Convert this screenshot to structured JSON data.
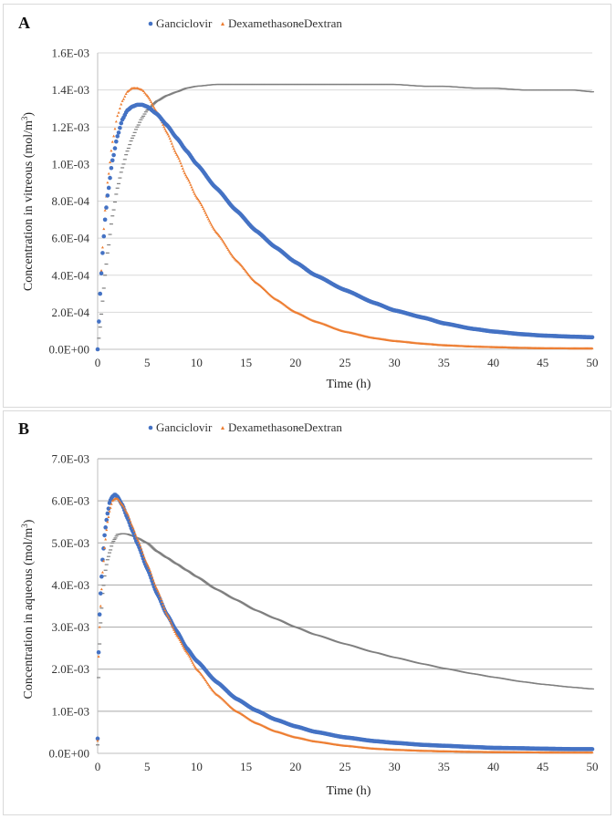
{
  "chart_data": [
    {
      "panel_label": "A",
      "type": "scatter",
      "title": "",
      "xlabel": "Time (h)",
      "ylabel": "Concentration in vitreous (mol/m3)",
      "ylabel_parts": {
        "main": "Concentration in vitreous (mol/m",
        "sup": "3",
        "end": ")"
      },
      "xlim": [
        0,
        50
      ],
      "ylim": [
        0,
        0.0016
      ],
      "x_ticks": [
        "0",
        "5",
        "10",
        "15",
        "20",
        "25",
        "30",
        "35",
        "40",
        "45",
        "50"
      ],
      "y_ticks": [
        "0.0E+00",
        "2.0E-04",
        "4.0E-04",
        "6.0E-04",
        "8.0E-04",
        "1.0E-03",
        "1.2E-03",
        "1.4E-03",
        "1.6E-03"
      ],
      "grid": true,
      "legend_position": "top-center",
      "series": [
        {
          "name": "Ganciclovir",
          "color": "#4472c4",
          "marker": "circle",
          "x": [
            0,
            0.25,
            0.5,
            0.75,
            1,
            1.5,
            2,
            2.5,
            3,
            3.5,
            4,
            4.5,
            5,
            6,
            7,
            8,
            9,
            10,
            12,
            14,
            16,
            18,
            20,
            22,
            25,
            28,
            30,
            33,
            35,
            38,
            40,
            43,
            45,
            48,
            50
          ],
          "y": [
            0,
            0.0003,
            0.00052,
            0.0007,
            0.00083,
            0.00102,
            0.00115,
            0.00124,
            0.00129,
            0.00131,
            0.00132,
            0.00132,
            0.00131,
            0.00127,
            0.00121,
            0.00114,
            0.00107,
            0.001,
            0.00087,
            0.00075,
            0.00064,
            0.00055,
            0.00047,
            0.0004,
            0.00032,
            0.00025,
            0.00021,
            0.00017,
            0.00014,
            0.00011,
            9.6e-05,
            8.1e-05,
            7.4e-05,
            6.8e-05,
            6.5e-05
          ]
        },
        {
          "name": "Dexamethasone",
          "color": "#ed7d31",
          "marker": "triangle",
          "x": [
            0,
            0.25,
            0.5,
            0.75,
            1,
            1.5,
            2,
            2.5,
            3,
            3.5,
            4,
            4.5,
            5,
            6,
            7,
            8,
            9,
            10,
            12,
            14,
            16,
            18,
            20,
            22,
            25,
            28,
            30,
            33,
            35,
            38,
            40,
            43,
            45,
            48,
            50
          ],
          "y": [
            0,
            0.0003,
            0.00055,
            0.00075,
            0.0009,
            0.00112,
            0.00126,
            0.00134,
            0.00139,
            0.00141,
            0.00141,
            0.0014,
            0.00137,
            0.00128,
            0.00117,
            0.00105,
            0.00093,
            0.00082,
            0.00063,
            0.00048,
            0.00036,
            0.00027,
            0.0002,
            0.00015,
            9.5e-05,
            6e-05,
            4.5e-05,
            3e-05,
            2.2e-05,
            1.5e-05,
            1.2e-05,
            8e-06,
            6e-06,
            5e-06,
            5e-06
          ]
        },
        {
          "name": "Dextran",
          "color": "#7f7f7f",
          "marker": "dash",
          "x": [
            0,
            0.25,
            0.5,
            0.75,
            1,
            1.5,
            2,
            2.5,
            3,
            3.5,
            4,
            4.5,
            5,
            6,
            7,
            8,
            9,
            10,
            12,
            14,
            16,
            18,
            20,
            22,
            25,
            28,
            30,
            33,
            35,
            38,
            40,
            43,
            45,
            48,
            50
          ],
          "y": [
            0,
            0.00012,
            0.00026,
            0.0004,
            0.00052,
            0.00072,
            0.00087,
            0.00098,
            0.00107,
            0.00114,
            0.0012,
            0.00125,
            0.00129,
            0.00134,
            0.00137,
            0.00139,
            0.00141,
            0.00142,
            0.00143,
            0.00143,
            0.00143,
            0.00143,
            0.00143,
            0.00143,
            0.00143,
            0.00143,
            0.00143,
            0.00142,
            0.00142,
            0.00141,
            0.00141,
            0.0014,
            0.0014,
            0.0014,
            0.00139
          ]
        }
      ]
    },
    {
      "panel_label": "B",
      "type": "scatter",
      "title": "",
      "xlabel": "Time (h)",
      "ylabel": "Concentration in aqueous (mol/m3)",
      "ylabel_parts": {
        "main": "Concentration in aqueous (mol/m",
        "sup": "3",
        "end": ")"
      },
      "xlim": [
        0,
        50
      ],
      "ylim": [
        0,
        0.007
      ],
      "x_ticks": [
        "0",
        "5",
        "10",
        "15",
        "20",
        "25",
        "30",
        "35",
        "40",
        "45",
        "50"
      ],
      "y_ticks": [
        "0.0E+00",
        "1.0E-03",
        "2.0E-03",
        "3.0E-03",
        "4.0E-03",
        "5.0E-03",
        "6.0E-03",
        "7.0E-03"
      ],
      "grid": true,
      "legend_position": "top-center",
      "series": [
        {
          "name": "Ganciclovir",
          "color": "#4472c4",
          "marker": "circle",
          "x": [
            0,
            0.1,
            0.2,
            0.3,
            0.5,
            0.75,
            1,
            1.25,
            1.5,
            1.75,
            2,
            2.5,
            3,
            3.5,
            4,
            5,
            6,
            7,
            8,
            9,
            10,
            12,
            14,
            16,
            18,
            20,
            22,
            25,
            28,
            30,
            33,
            35,
            38,
            40,
            43,
            45,
            48,
            50
          ],
          "y": [
            0.00035,
            0.0024,
            0.0033,
            0.0038,
            0.0046,
            0.0053,
            0.0057,
            0.006,
            0.0061,
            0.00615,
            0.0061,
            0.0059,
            0.0056,
            0.0053,
            0.005,
            0.0044,
            0.0038,
            0.0033,
            0.0029,
            0.0025,
            0.0022,
            0.0017,
            0.0013,
            0.00102,
            0.0008,
            0.00064,
            0.00051,
            0.00038,
            0.00029,
            0.00025,
            0.0002,
            0.00018,
            0.00015,
            0.00013,
            0.00012,
            0.00011,
            0.0001,
            0.0001
          ]
        },
        {
          "name": "Dexamethasone",
          "color": "#ed7d31",
          "marker": "triangle",
          "x": [
            0,
            0.1,
            0.2,
            0.3,
            0.5,
            0.75,
            1,
            1.25,
            1.5,
            1.75,
            2,
            2.5,
            3,
            3.5,
            4,
            5,
            6,
            7,
            8,
            9,
            10,
            12,
            14,
            16,
            18,
            20,
            22,
            25,
            28,
            30,
            33,
            35,
            38,
            40,
            43,
            45,
            48,
            50
          ],
          "y": [
            0.0003,
            0.0023,
            0.003,
            0.0035,
            0.0043,
            0.005,
            0.0055,
            0.0058,
            0.006,
            0.00605,
            0.00605,
            0.0059,
            0.0057,
            0.0054,
            0.0051,
            0.0045,
            0.0039,
            0.0033,
            0.0028,
            0.0024,
            0.002,
            0.0014,
            0.001,
            0.00072,
            0.00052,
            0.00038,
            0.00028,
            0.00018,
            0.00011,
            8.5e-05,
            6e-05,
            4.8e-05,
            3.6e-05,
            3e-05,
            2.5e-05,
            2.2e-05,
            2e-05,
            2e-05
          ]
        },
        {
          "name": "Dextran",
          "color": "#7f7f7f",
          "marker": "dash",
          "x": [
            0,
            0.1,
            0.2,
            0.3,
            0.5,
            0.75,
            1,
            1.25,
            1.5,
            1.75,
            2,
            2.5,
            3,
            3.5,
            4,
            5,
            6,
            7,
            8,
            9,
            10,
            12,
            14,
            16,
            18,
            20,
            22,
            25,
            28,
            30,
            33,
            35,
            38,
            40,
            43,
            45,
            48,
            50
          ],
          "y": [
            0.0002,
            0.0018,
            0.0026,
            0.0031,
            0.0038,
            0.0043,
            0.0046,
            0.0048,
            0.005,
            0.0051,
            0.0052,
            0.00522,
            0.00521,
            0.00517,
            0.00512,
            0.005,
            0.0048,
            0.00465,
            0.0045,
            0.00435,
            0.0042,
            0.0039,
            0.00365,
            0.0034,
            0.0032,
            0.003,
            0.00282,
            0.0026,
            0.0024,
            0.00228,
            0.00212,
            0.00202,
            0.00189,
            0.00181,
            0.0017,
            0.00164,
            0.00157,
            0.00153
          ]
        }
      ]
    }
  ]
}
